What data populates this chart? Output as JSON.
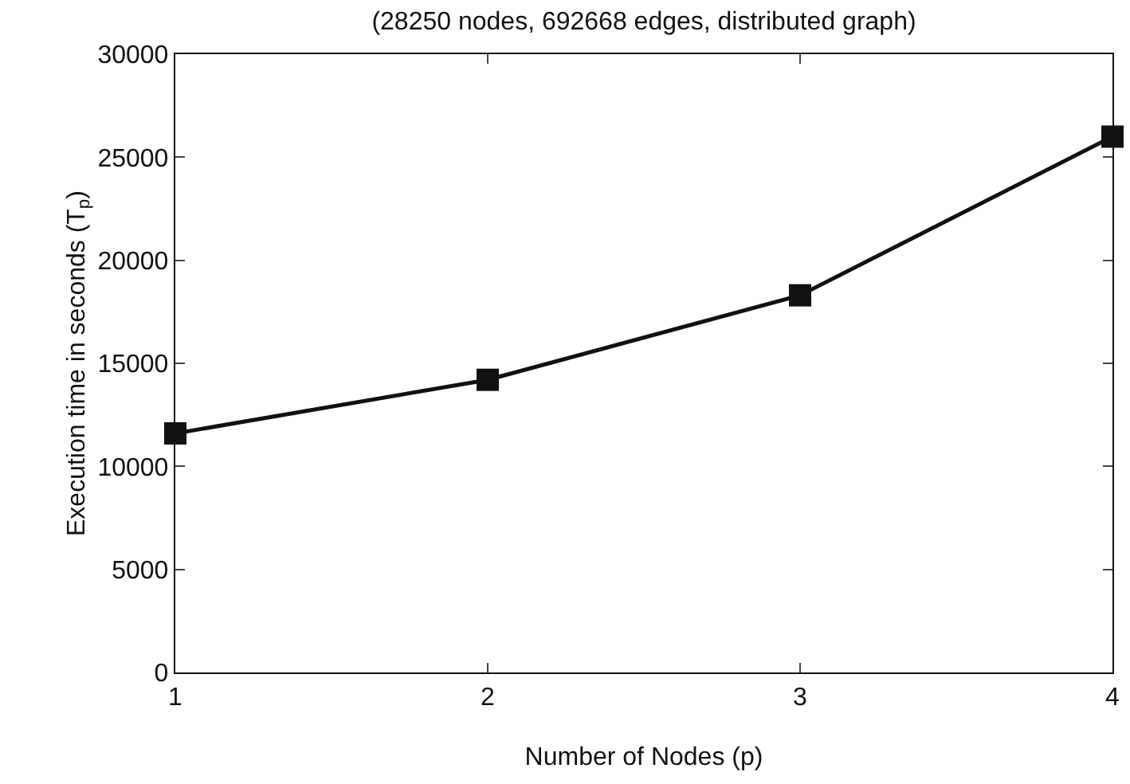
{
  "chart_data": {
    "type": "line",
    "title": "(28250 nodes, 692668 edges, distributed graph)",
    "xlabel": "Number of Nodes (p)",
    "ylabel": "Execution time in seconds (T$_{p}$)",
    "x": [
      1,
      2,
      3,
      4
    ],
    "series": [
      {
        "color": "#111111",
        "values": [
          11600,
          14200,
          18300,
          26000
        ]
      }
    ],
    "xlim": [
      1,
      4
    ],
    "xticks": [
      1,
      2,
      3,
      4
    ],
    "ylim": [
      0,
      30000
    ],
    "yticks": [
      0,
      5000,
      10000,
      15000,
      20000,
      25000,
      30000
    ],
    "marker": "square",
    "line_style": "solid"
  }
}
